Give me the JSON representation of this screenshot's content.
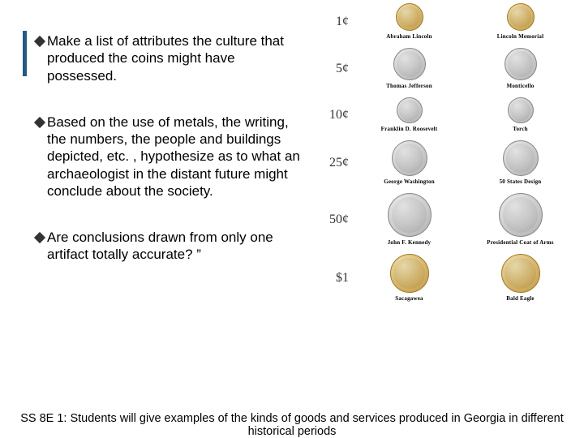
{
  "bullets": [
    "Make a list of attributes the culture that produced the coins might have possessed.",
    "Based on the use of metals, the writing, the numbers, the people and buildings depicted, etc. , hypothesize as to what an archaeologist in the distant future might conclude about the society.",
    "Are conclusions drawn from only one artifact totally accurate? ”"
  ],
  "coins": [
    {
      "denom": "1¢",
      "size": "sz-1c",
      "gold": true,
      "front": "Abraham Lincoln",
      "back": "Lincoln Memorial"
    },
    {
      "denom": "5¢",
      "size": "sz-5c",
      "gold": false,
      "front": "Thomas Jefferson",
      "back": "Monticello"
    },
    {
      "denom": "10¢",
      "size": "sz-10c",
      "gold": false,
      "front": "Franklin D. Roosevelt",
      "back": "Torch"
    },
    {
      "denom": "25¢",
      "size": "sz-25c",
      "gold": false,
      "front": "George Washington",
      "back": "50 States Design"
    },
    {
      "denom": "50¢",
      "size": "sz-50c",
      "gold": false,
      "front": "John F. Kennedy",
      "back": "Presidential Coat of Arms"
    },
    {
      "denom": "$1",
      "size": "sz-1d",
      "gold": true,
      "front": "Sacagawea",
      "back": "Bald Eagle"
    }
  ],
  "footer": "SS 8E 1: Students will give examples of the kinds of goods and services produced in Georgia in different historical periods",
  "colors": {
    "accent": "#1f5a8a",
    "background": "#ffffff"
  }
}
